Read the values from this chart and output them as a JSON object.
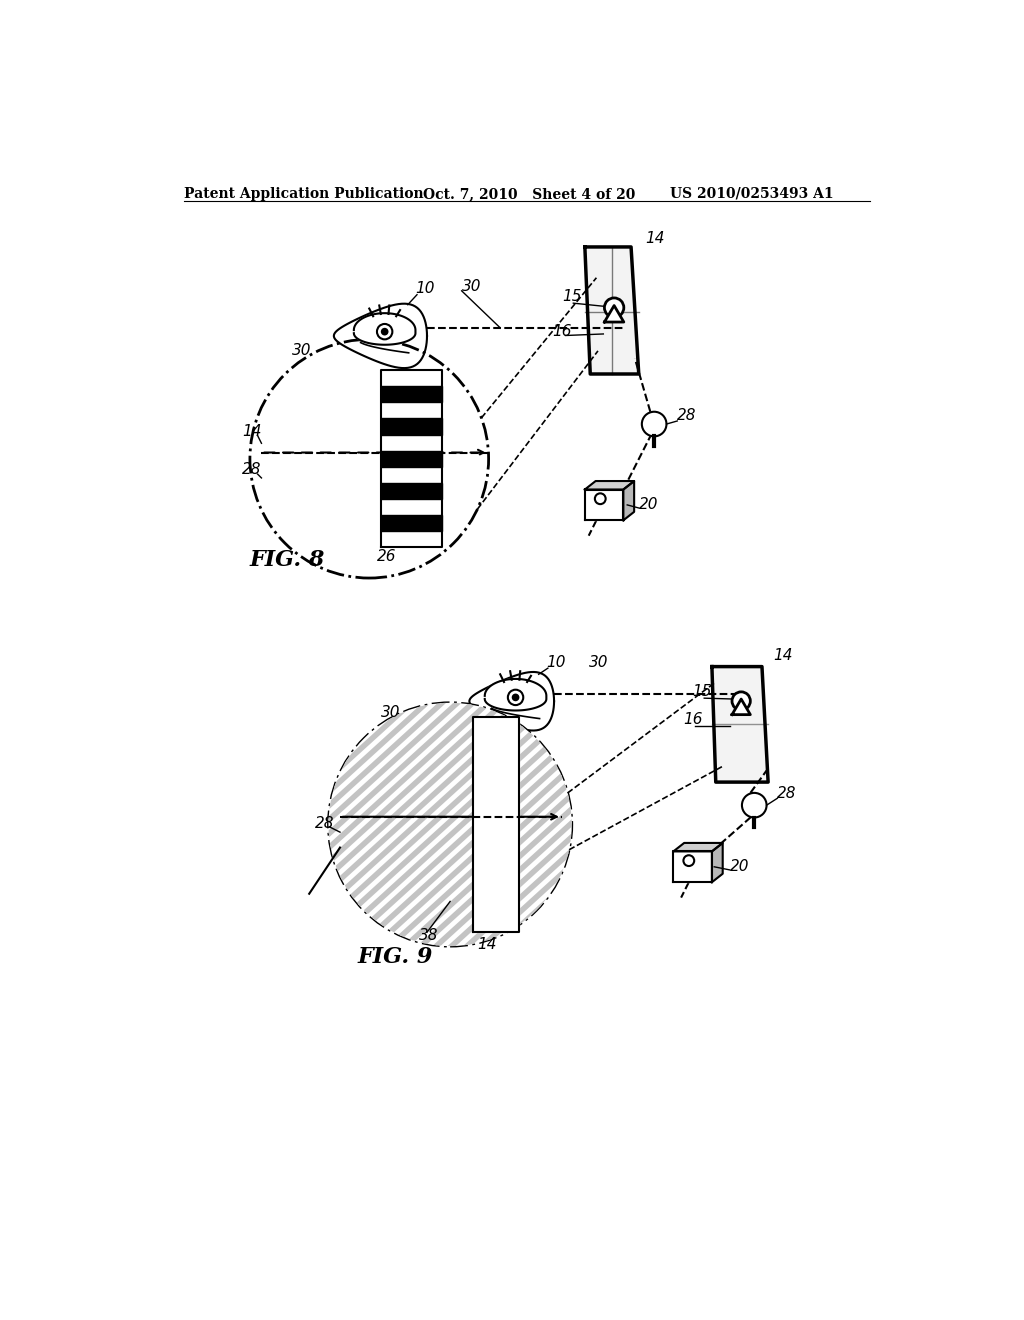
{
  "title_left": "Patent Application Publication",
  "title_mid": "Oct. 7, 2010   Sheet 4 of 20",
  "title_right": "US 2010/0253493 A1",
  "fig8_label": "FIG. 8",
  "fig9_label": "FIG. 9",
  "bg": "#ffffff",
  "lc": "#000000"
}
